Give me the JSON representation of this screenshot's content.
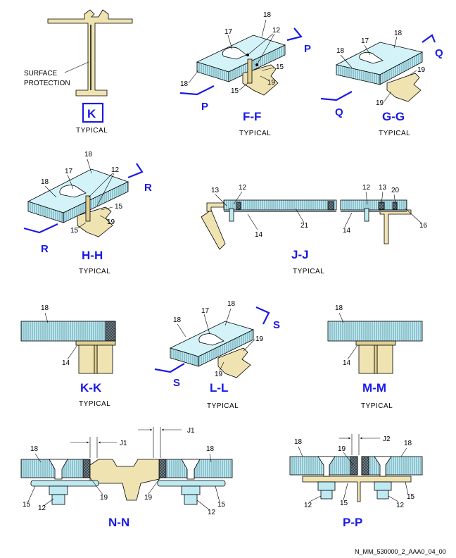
{
  "figure_ref": "N_MM_530000_2_AAA0_04_00",
  "typical_label": "TYPICAL",
  "views": {
    "k": {
      "label": "K",
      "note": "SURFACE\nPROTECTION",
      "note_line1": "SURFACE",
      "note_line2": "PROTECTION"
    },
    "ff": {
      "label": "F-F",
      "arrow": "P",
      "callouts": [
        "18",
        "17",
        "12",
        "15",
        "19",
        "15",
        "18"
      ]
    },
    "gg": {
      "label": "G-G",
      "arrow": "Q",
      "callouts": [
        "18",
        "17",
        "18",
        "19",
        "19"
      ]
    },
    "hh": {
      "label": "H-H",
      "arrow": "R",
      "callouts": [
        "18",
        "17",
        "12",
        "18",
        "15",
        "19",
        "15"
      ]
    },
    "jj": {
      "label": "J-J",
      "callouts": [
        "13",
        "12",
        "14",
        "21",
        "12",
        "13",
        "20",
        "14",
        "16"
      ]
    },
    "kk": {
      "label": "K-K",
      "callouts": [
        "18",
        "14"
      ]
    },
    "ll": {
      "label": "L-L",
      "arrow": "S",
      "callouts": [
        "18",
        "17",
        "18",
        "19",
        "19"
      ]
    },
    "mm": {
      "label": "M-M",
      "callouts": [
        "18",
        "14"
      ]
    },
    "nn": {
      "label": "N-N",
      "dim": "J1",
      "callouts": [
        "18",
        "18",
        "15",
        "12",
        "19",
        "19",
        "12",
        "15"
      ]
    },
    "pp": {
      "label": "P-P",
      "dim": "J2",
      "callouts": [
        "18",
        "19",
        "18",
        "12",
        "15",
        "12",
        "15"
      ]
    }
  },
  "colors": {
    "accent": "#1a1ae6",
    "panel": "#bfeaf2",
    "beam": "#f0e3b2"
  }
}
